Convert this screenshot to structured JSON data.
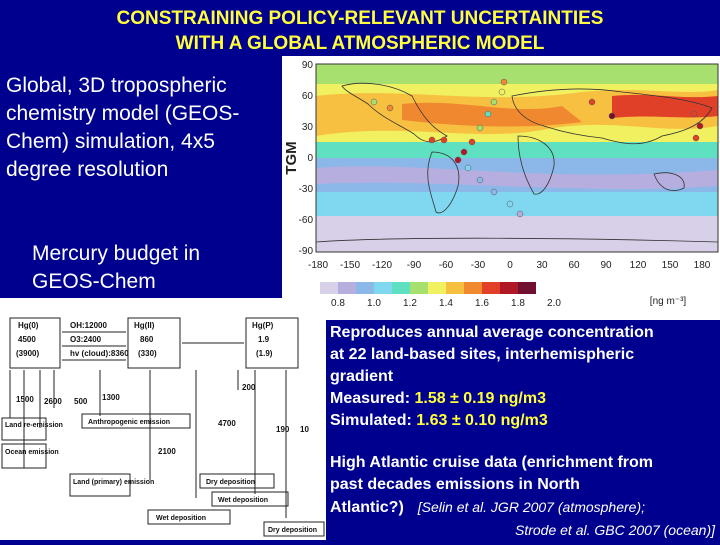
{
  "title": {
    "line1": "CONSTRAINING POLICY-RELEVANT UNCERTAINTIES",
    "line2": "WITH A GLOBAL ATMOSPHERIC MODEL"
  },
  "intro": {
    "text": "Global, 3D tropospheric chemistry model (GEOS-Chem) simulation, 4x5 degree resolution"
  },
  "budget_label": "Mercury budget in GEOS-Chem",
  "map": {
    "ylabel": "TGM",
    "yticks": [
      "90",
      "60",
      "30",
      "0",
      "-30",
      "-60",
      "-90"
    ],
    "xticks": [
      "-180",
      "-150",
      "-120",
      "-90",
      "-60",
      "-30",
      "0",
      "30",
      "60",
      "90",
      "120",
      "150",
      "180"
    ],
    "colorbar_ticks": [
      "0.8",
      "1.0",
      "1.2",
      "1.4",
      "1.6",
      "1.8",
      "2.0"
    ],
    "colorbar_unit": "[ng m⁻³]",
    "colorbar_colors": [
      "#d8d0e8",
      "#b7aee0",
      "#8bb8e8",
      "#7fd8f0",
      "#5fe0c0",
      "#a8e070",
      "#f0f060",
      "#f8c040",
      "#f08830",
      "#e04028",
      "#b01828",
      "#701030"
    ]
  },
  "budget": {
    "oh": "OH:12000",
    "o3": "O3:2400",
    "hv": "hv (cloud):8360",
    "hg0": {
      "name": "Hg(0)",
      "v1": "4500",
      "v2": "(3900)"
    },
    "hg2": {
      "name": "Hg(II)",
      "v1": "860",
      "v2": "(330)"
    },
    "hgp": {
      "name": "Hg(P)",
      "v1": "1.9",
      "v2": "(1.9)"
    },
    "f1500": "1500",
    "f2600": "2600",
    "f500": "500",
    "f1300": "1300",
    "f200": "200",
    "f4700": "4700",
    "f2100": "2100",
    "f190": "190",
    "f10": "10",
    "anthro": "Anthropogenic emission",
    "land_re": "Land re-emission",
    "ocean": "Ocean emission",
    "land_primary": "Land (primary) emission",
    "dry1": "Dry deposition",
    "wet1": "Wet deposition",
    "wet2": "Wet deposition",
    "dry2": "Dry deposition"
  },
  "reproduces": {
    "line1": "Reproduces annual average concentration",
    "line2": "at 22 land-based sites, interhemispheric",
    "line3": "gradient",
    "measured_label": "Measured: ",
    "measured_value": "1.58 ± 0.19 ng/m3",
    "simulated_label": "Simulated: ",
    "simulated_value": "1.63 ± 0.10 ng/m3"
  },
  "cruise": {
    "line1": "High Atlantic cruise data (enrichment from",
    "line2": "past decades emissions in North",
    "line3": "Atlantic?)",
    "cite1": "[Selin et al. JGR 2007 (atmosphere);",
    "cite2": "Strode et al. GBC 2007 (ocean)]"
  }
}
